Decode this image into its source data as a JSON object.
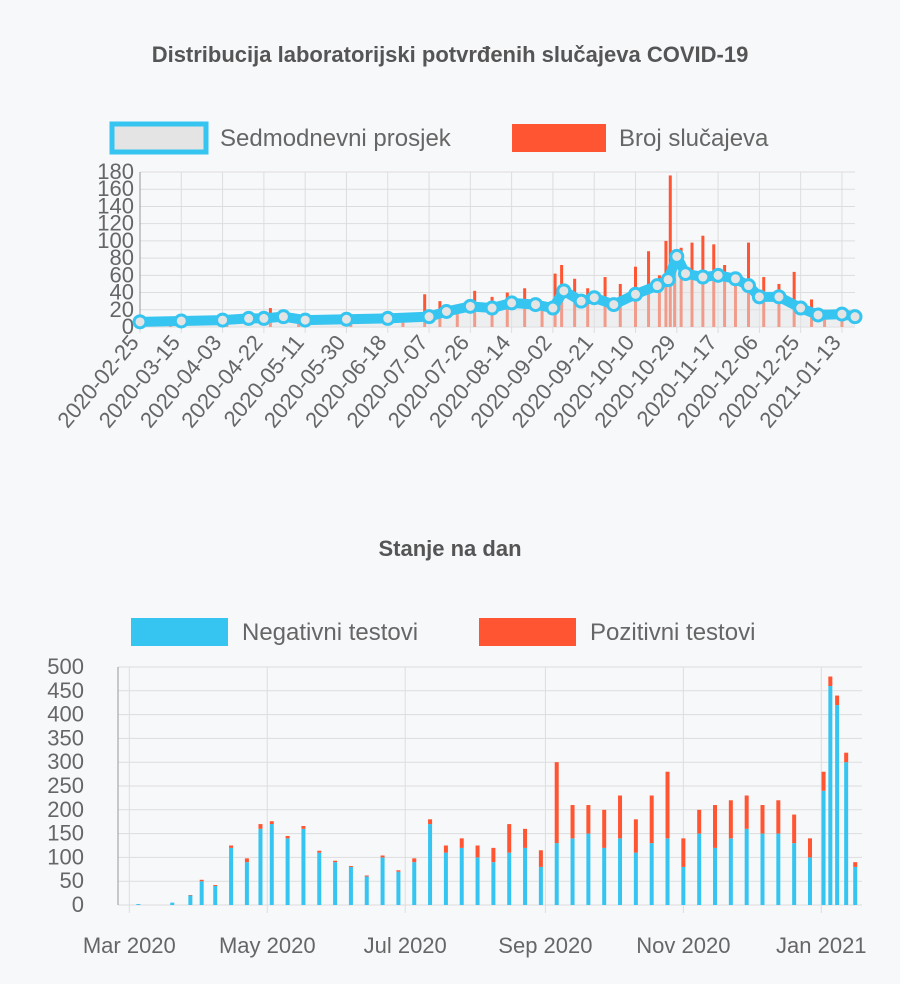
{
  "chart_data": [
    {
      "type": "bar",
      "title": "Distribucija laboratorijski potvrđenih slučajeva COVID-19",
      "x_start": "2020-02-25",
      "x_end": "2021-01-19",
      "x_tick_labels": [
        "2020-02-25",
        "2020-03-15",
        "2020-04-03",
        "2020-04-22",
        "2020-05-11",
        "2020-05-30",
        "2020-06-18",
        "2020-07-07",
        "2020-07-26",
        "2020-08-14",
        "2020-09-02",
        "2020-09-21",
        "2020-10-10",
        "2020-10-29",
        "2020-11-17",
        "2020-12-06",
        "2020-12-25",
        "2021-01-13"
      ],
      "y_ticks": [
        0,
        20,
        40,
        60,
        80,
        100,
        120,
        140,
        160,
        180
      ],
      "ylim": [
        0,
        180
      ],
      "grid": true,
      "legend_position": "top",
      "series": [
        {
          "name": "Sedmodnevni prosjek",
          "type": "line",
          "color": "#36c5f0",
          "fill": "#e4e4e4",
          "x": [
            "2020-02-25",
            "2020-03-15",
            "2020-04-03",
            "2020-04-15",
            "2020-04-22",
            "2020-05-01",
            "2020-05-11",
            "2020-05-30",
            "2020-06-18",
            "2020-07-07",
            "2020-07-15",
            "2020-07-26",
            "2020-08-05",
            "2020-08-14",
            "2020-08-25",
            "2020-09-02",
            "2020-09-07",
            "2020-09-15",
            "2020-09-21",
            "2020-09-30",
            "2020-10-10",
            "2020-10-20",
            "2020-10-25",
            "2020-10-29",
            "2020-11-02",
            "2020-11-10",
            "2020-11-17",
            "2020-11-25",
            "2020-12-01",
            "2020-12-06",
            "2020-12-15",
            "2020-12-25",
            "2021-01-02",
            "2021-01-13",
            "2021-01-19"
          ],
          "y": [
            6,
            7,
            8,
            10,
            10,
            12,
            8,
            9,
            10,
            12,
            18,
            24,
            22,
            28,
            26,
            22,
            42,
            30,
            34,
            26,
            38,
            48,
            55,
            82,
            62,
            58,
            60,
            56,
            48,
            35,
            35,
            22,
            14,
            15,
            12
          ]
        },
        {
          "name": "Broj slučajeva",
          "type": "bar",
          "color": "#ff5533",
          "x": [
            "2020-03-10",
            "2020-04-05",
            "2020-04-25",
            "2020-05-08",
            "2020-06-01",
            "2020-06-25",
            "2020-07-05",
            "2020-07-12",
            "2020-07-20",
            "2020-07-28",
            "2020-08-05",
            "2020-08-12",
            "2020-08-20",
            "2020-08-28",
            "2020-09-03",
            "2020-09-06",
            "2020-09-12",
            "2020-09-18",
            "2020-09-26",
            "2020-10-03",
            "2020-10-10",
            "2020-10-16",
            "2020-10-21",
            "2020-10-24",
            "2020-10-26",
            "2020-10-28",
            "2020-10-31",
            "2020-11-05",
            "2020-11-10",
            "2020-11-15",
            "2020-11-20",
            "2020-11-25",
            "2020-12-01",
            "2020-12-08",
            "2020-12-15",
            "2020-12-22",
            "2020-12-30",
            "2021-01-05",
            "2021-01-13"
          ],
          "y": [
            5,
            12,
            22,
            12,
            10,
            8,
            38,
            30,
            18,
            42,
            35,
            40,
            45,
            30,
            62,
            72,
            56,
            45,
            58,
            50,
            70,
            88,
            60,
            100,
            176,
            74,
            92,
            98,
            106,
            96,
            72,
            60,
            98,
            58,
            50,
            64,
            32,
            20,
            20
          ]
        }
      ]
    },
    {
      "type": "bar",
      "stacked": true,
      "title": "Stanje na dan",
      "x_start": "2020-02-25",
      "x_end": "2021-01-19",
      "x_tick_labels": [
        "Mar 2020",
        "May 2020",
        "Jul 2020",
        "Sep 2020",
        "Nov 2020",
        "Jan 2021"
      ],
      "x_tick_dates": [
        "2020-03-01",
        "2020-05-01",
        "2020-07-01",
        "2020-09-01",
        "2020-11-01",
        "2021-01-01"
      ],
      "y_ticks": [
        0,
        50,
        100,
        150,
        200,
        250,
        300,
        350,
        400,
        450,
        500
      ],
      "ylim": [
        0,
        500
      ],
      "grid": true,
      "legend_position": "top",
      "series": [
        {
          "name": "Negativni testovi",
          "color": "#36c5f0",
          "x": [
            "2020-03-05",
            "2020-03-20",
            "2020-03-28",
            "2020-04-02",
            "2020-04-08",
            "2020-04-15",
            "2020-04-22",
            "2020-04-28",
            "2020-05-03",
            "2020-05-10",
            "2020-05-17",
            "2020-05-24",
            "2020-05-31",
            "2020-06-07",
            "2020-06-14",
            "2020-06-21",
            "2020-06-28",
            "2020-07-05",
            "2020-07-12",
            "2020-07-19",
            "2020-07-26",
            "2020-08-02",
            "2020-08-09",
            "2020-08-16",
            "2020-08-23",
            "2020-08-30",
            "2020-09-06",
            "2020-09-13",
            "2020-09-20",
            "2020-09-27",
            "2020-10-04",
            "2020-10-11",
            "2020-10-18",
            "2020-10-25",
            "2020-11-01",
            "2020-11-08",
            "2020-11-15",
            "2020-11-22",
            "2020-11-29",
            "2020-12-06",
            "2020-12-13",
            "2020-12-20",
            "2020-12-27",
            "2021-01-02",
            "2021-01-05",
            "2021-01-08",
            "2021-01-12",
            "2021-01-16"
          ],
          "y": [
            2,
            5,
            20,
            50,
            40,
            120,
            90,
            160,
            170,
            140,
            160,
            110,
            90,
            80,
            60,
            100,
            70,
            90,
            170,
            110,
            120,
            100,
            90,
            110,
            120,
            80,
            130,
            140,
            150,
            120,
            140,
            110,
            130,
            140,
            80,
            150,
            120,
            140,
            160,
            150,
            150,
            130,
            100,
            240,
            460,
            420,
            300,
            80
          ]
        },
        {
          "name": "Pozitivni testovi",
          "color": "#ff5533",
          "x": [
            "2020-03-05",
            "2020-03-20",
            "2020-03-28",
            "2020-04-02",
            "2020-04-08",
            "2020-04-15",
            "2020-04-22",
            "2020-04-28",
            "2020-05-03",
            "2020-05-10",
            "2020-05-17",
            "2020-05-24",
            "2020-05-31",
            "2020-06-07",
            "2020-06-14",
            "2020-06-21",
            "2020-06-28",
            "2020-07-05",
            "2020-07-12",
            "2020-07-19",
            "2020-07-26",
            "2020-08-02",
            "2020-08-09",
            "2020-08-16",
            "2020-08-23",
            "2020-08-30",
            "2020-09-06",
            "2020-09-13",
            "2020-09-20",
            "2020-09-27",
            "2020-10-04",
            "2020-10-11",
            "2020-10-18",
            "2020-10-25",
            "2020-11-01",
            "2020-11-08",
            "2020-11-15",
            "2020-11-22",
            "2020-11-29",
            "2020-12-06",
            "2020-12-13",
            "2020-12-20",
            "2020-12-27",
            "2021-01-02",
            "2021-01-05",
            "2021-01-08",
            "2021-01-12",
            "2021-01-16"
          ],
          "y": [
            0,
            0,
            1,
            3,
            2,
            5,
            8,
            10,
            6,
            5,
            6,
            4,
            3,
            2,
            2,
            4,
            3,
            8,
            10,
            15,
            20,
            25,
            30,
            60,
            40,
            35,
            170,
            70,
            60,
            80,
            90,
            70,
            100,
            140,
            60,
            50,
            90,
            80,
            70,
            60,
            70,
            60,
            40,
            40,
            20,
            20,
            20,
            10
          ]
        }
      ]
    }
  ]
}
